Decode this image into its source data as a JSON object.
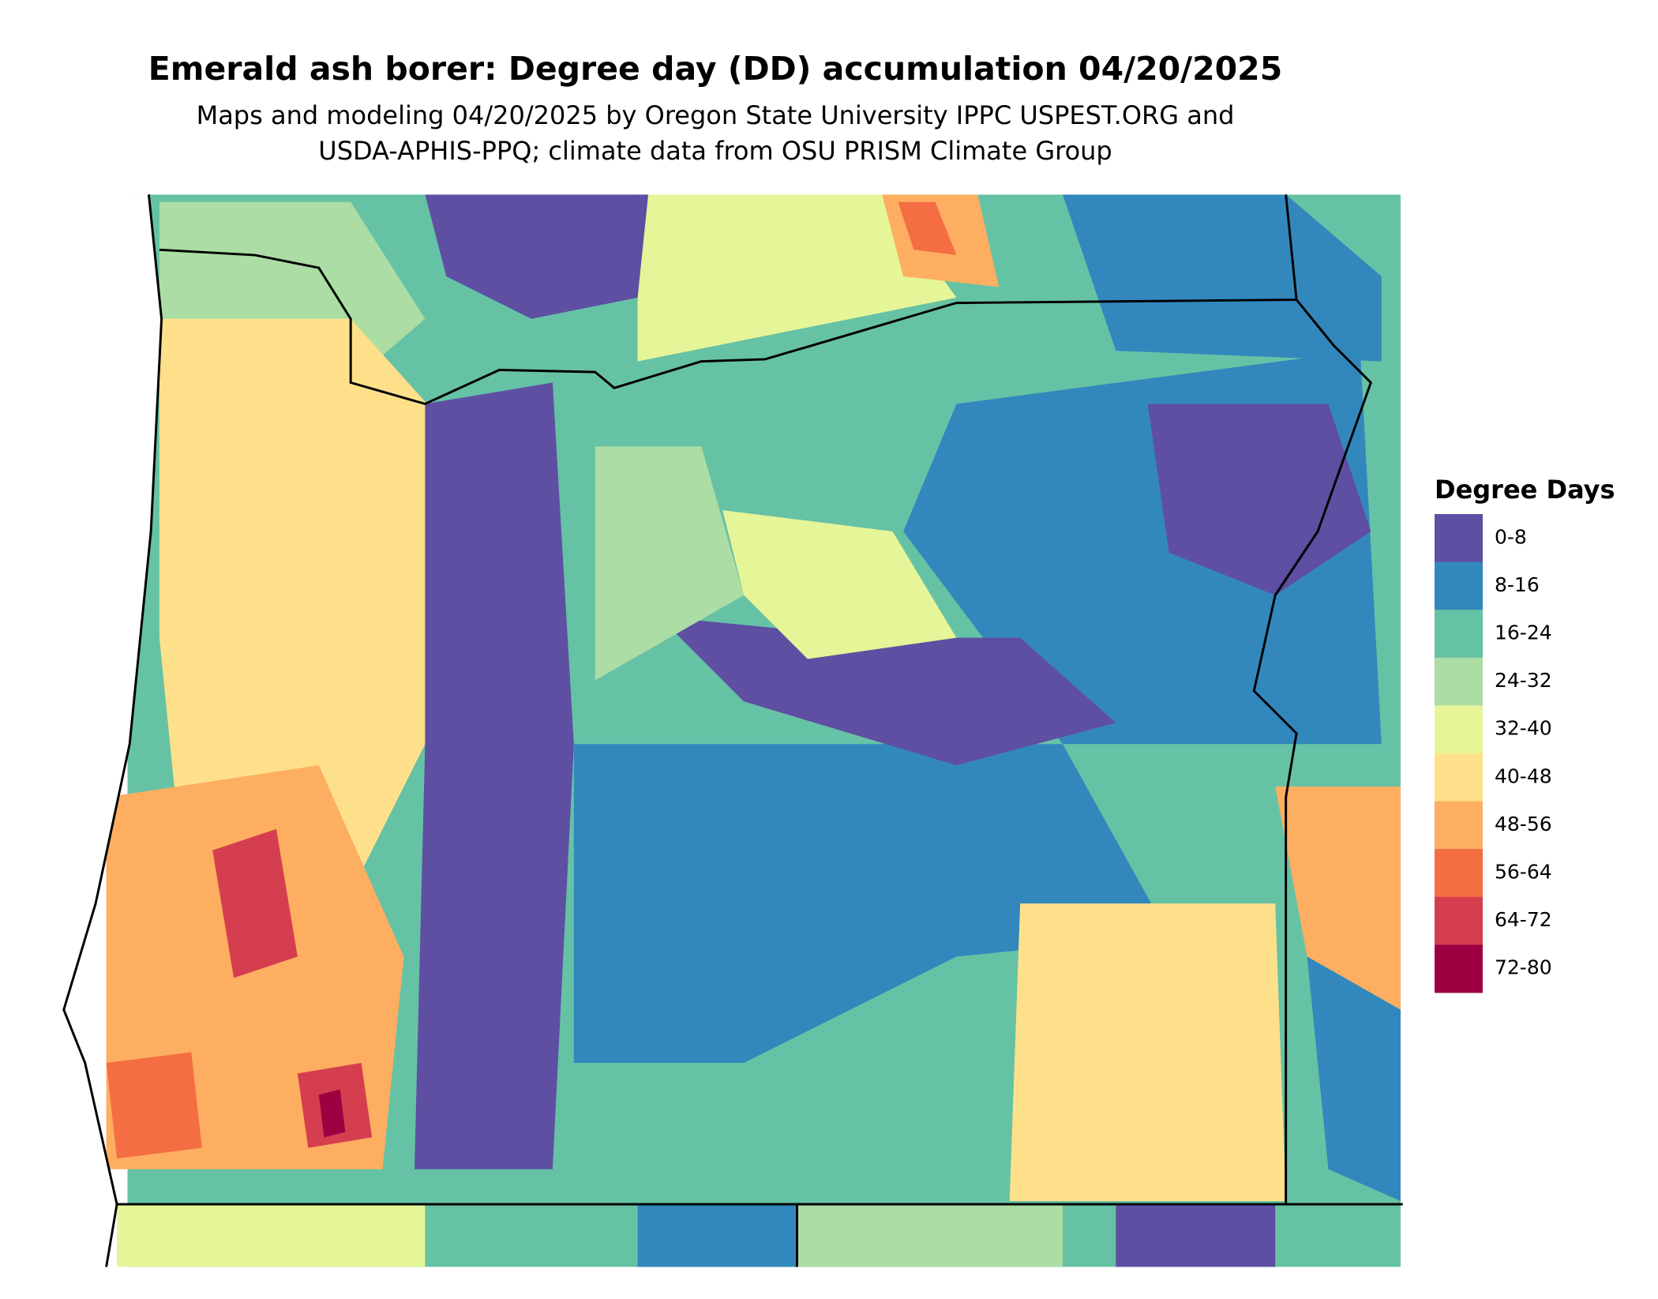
{
  "title": "Emerald ash borer: Degree day (DD) accumulation 04/20/2025",
  "subtitle": [
    "Maps and modeling 04/20/2025 by Oregon State University IPPC USPEST.ORG and",
    "USDA-APHIS-PPQ; climate data from OSU PRISM Climate Group"
  ],
  "legend": {
    "title": "Degree Days",
    "items": [
      {
        "label": "0-8",
        "color": "#5e4fa2"
      },
      {
        "label": "8-16",
        "color": "#3288bd"
      },
      {
        "label": "16-24",
        "color": "#66c2a5"
      },
      {
        "label": "24-32",
        "color": "#abdda4"
      },
      {
        "label": "32-40",
        "color": "#e6f598"
      },
      {
        "label": "40-48",
        "color": "#fee08b"
      },
      {
        "label": "48-56",
        "color": "#fdae61"
      },
      {
        "label": "56-64",
        "color": "#f46d43"
      },
      {
        "label": "64-72",
        "color": "#d53e4f"
      },
      {
        "label": "72-80",
        "color": "#9e0142"
      }
    ]
  }
}
